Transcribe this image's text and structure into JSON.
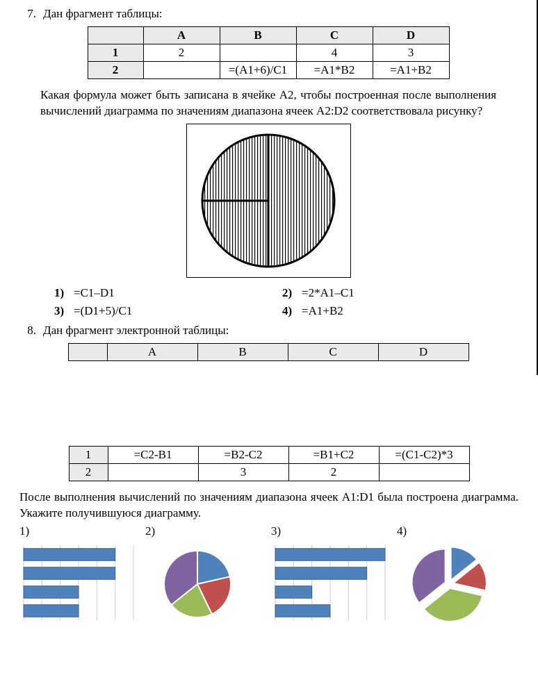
{
  "q7": {
    "number": "7.",
    "intro": "Дан фрагмент таблицы:",
    "table": {
      "cols": [
        "",
        "A",
        "B",
        "C",
        "D"
      ],
      "widths": [
        80,
        110,
        110,
        110,
        110
      ],
      "rows": [
        [
          "1",
          "2",
          "",
          "4",
          "3"
        ],
        [
          "2",
          "",
          "=(A1+6)/C1",
          "=A1*B2",
          "=A1+B2"
        ]
      ]
    },
    "body": "Какая формула может быть записана в ячейке A2, чтобы построенная после выполнения вычислений диаграмма по значениям диапазона ячеек A2:D2 соответствовала рисунку?",
    "pie": {
      "radius": 95,
      "slice_fractions": [
        0.5,
        0.25,
        0.25
      ],
      "start_angle_deg": -90,
      "fill_pattern": "vertical-hatch",
      "stroke": "#000000",
      "stroke_width": 3
    },
    "answers": [
      {
        "n": "1)",
        "t": "=C1–D1"
      },
      {
        "n": "2)",
        "t": "=2*A1–C1"
      },
      {
        "n": "3)",
        "t": "=(D1+5)/C1"
      },
      {
        "n": "4)",
        "t": "=A1+B2"
      }
    ]
  },
  "q8": {
    "number": "8.",
    "intro": "Дан фрагмент электронной таблицы:",
    "table_head": {
      "cols": [
        "",
        "A",
        "B",
        "C",
        "D"
      ],
      "widths": [
        56,
        130,
        130,
        130,
        130
      ]
    },
    "table_body": {
      "widths": [
        56,
        130,
        130,
        130,
        130
      ],
      "rows": [
        [
          "1",
          "=C2-B1",
          "=B2-C2",
          "=B1+C2",
          "=(C1-C2)*3"
        ],
        [
          "2",
          "",
          "3",
          "2",
          ""
        ]
      ]
    },
    "body": "После выполнения вычислений по значениям диапазона ячеек A1:D1 была построена диаграмма. Укажите получившуюся диаграмму.",
    "charts": {
      "labels": [
        "1)",
        "2)",
        "3)",
        "4)"
      ],
      "bar_color": "#4f81bd",
      "bar_border": "#385d8a",
      "grid_color": "#cfcfcf",
      "pie_colors": {
        "blue": "#4f81bd",
        "red": "#c0504d",
        "green": "#9bbb59",
        "purple": "#8064a2"
      },
      "chart1": {
        "type": "hbar",
        "values": [
          5,
          5,
          3,
          3
        ],
        "max": 6
      },
      "chart2": {
        "type": "pie",
        "slices": [
          {
            "value": 3,
            "color": "#4f81bd"
          },
          {
            "value": 3,
            "color": "#c0504d"
          },
          {
            "value": 3,
            "color": "#9bbb59"
          },
          {
            "value": 5,
            "color": "#8064a2"
          }
        ],
        "start_angle_deg": -90
      },
      "chart3": {
        "type": "hbar",
        "values": [
          6,
          5,
          2,
          3
        ],
        "max": 6
      },
      "chart4": {
        "type": "pie",
        "slices": [
          {
            "value": 2,
            "color": "#4f81bd"
          },
          {
            "value": 2,
            "color": "#c0504d"
          },
          {
            "value": 5,
            "color": "#9bbb59"
          },
          {
            "value": 5,
            "color": "#8064a2"
          }
        ],
        "start_angle_deg": -90,
        "exploded": true
      }
    }
  }
}
